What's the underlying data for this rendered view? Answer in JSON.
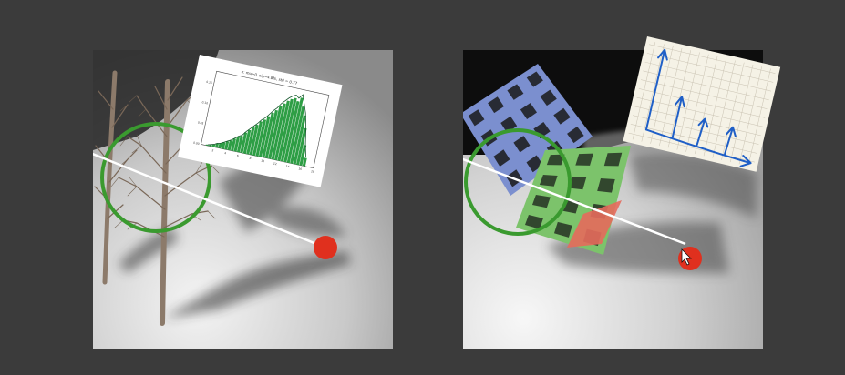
{
  "figure": {
    "left_panel": {
      "scene": "tree-shadow",
      "histogram": {
        "title": "n: mu=0, sig=4.8%, std = 0.77",
        "y_ticks": [
          "0.15",
          "0.10",
          "0.05",
          "0.00"
        ],
        "x_ticks": [
          "2",
          "4",
          "6",
          "8",
          "10",
          "12",
          "14",
          "16",
          "18"
        ],
        "bar_color": "#2e9e45"
      },
      "annotation_colors": {
        "circle": "#3a9a2f",
        "ray": "#ffffff",
        "light": "#e0301e"
      }
    },
    "right_panel": {
      "scene": "perforated-planes",
      "plane_colors": [
        "#7b8fcf",
        "#7cc36b",
        "#e66a5c"
      ],
      "sketch": {
        "ink_color": "#1f5fc7",
        "paper_color": "#f5f2e6"
      },
      "annotation_colors": {
        "circle": "#3a9a2f",
        "ray": "#ffffff",
        "light": "#e0301e"
      }
    },
    "cursor": {
      "visible": true
    }
  },
  "chart_data": {
    "type": "bar",
    "title": "n: mu=0, sig=4.8%, std = 0.77",
    "x": [
      1.0,
      1.5,
      2.0,
      2.5,
      3.0,
      3.5,
      4.0,
      4.5,
      5.0,
      5.5,
      6.0,
      6.5,
      7.0,
      7.5,
      8.0,
      8.5,
      9.0,
      9.5,
      10.0,
      10.5,
      11.0,
      11.5,
      12.0,
      12.5,
      13.0,
      13.5,
      14.0,
      14.5,
      15.0,
      15.5,
      16.0,
      16.5
    ],
    "values": [
      0.002,
      0.004,
      0.006,
      0.01,
      0.012,
      0.016,
      0.02,
      0.024,
      0.03,
      0.036,
      0.04,
      0.05,
      0.058,
      0.066,
      0.074,
      0.084,
      0.09,
      0.1,
      0.11,
      0.118,
      0.13,
      0.138,
      0.146,
      0.152,
      0.156,
      0.15,
      0.16,
      0.14,
      0.12,
      0.09,
      0.05,
      0.02
    ],
    "ylim": [
      0,
      0.18
    ],
    "xlim": [
      0,
      18
    ]
  }
}
